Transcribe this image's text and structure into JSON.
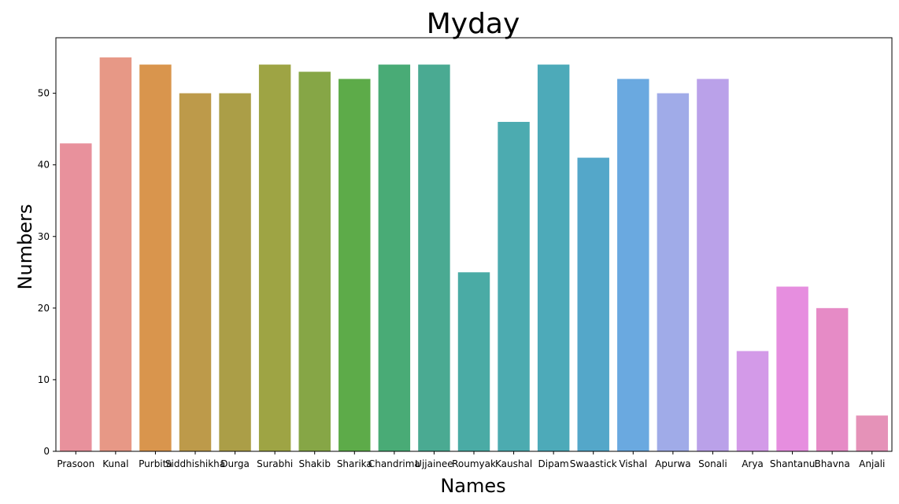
{
  "chart_data": {
    "type": "bar",
    "title": "Myday",
    "xlabel": "Names",
    "ylabel": "Numbers",
    "ylim": [
      0,
      57.75
    ],
    "yticks": [
      0,
      10,
      20,
      30,
      40,
      50
    ],
    "grid": false,
    "categories": [
      "Prasoon",
      "Kunal",
      "Purbita",
      "Siddhishikha",
      "Durga",
      "Surabhi",
      "Shakib",
      "Sharika",
      "Chandrima",
      "Ujjainee",
      "Roumyak",
      "Kaushal",
      "Dipam",
      "Swaastick",
      "Vishal",
      "Apurwa",
      "Sonali",
      "Arya",
      "Shantanu",
      "Bhavna",
      "Anjali"
    ],
    "values": [
      43,
      55,
      54,
      50,
      50,
      54,
      53,
      52,
      54,
      54,
      25,
      46,
      54,
      41,
      52,
      50,
      52,
      14,
      23,
      20,
      5
    ],
    "colors": [
      "#e8919c",
      "#e79886",
      "#d9954d",
      "#bd9a4a",
      "#ab9e47",
      "#9ea444",
      "#86a646",
      "#5dab49",
      "#49ab76",
      "#4aaa92",
      "#4aaba5",
      "#4cabb0",
      "#4daab9",
      "#54a7c9",
      "#6aa9e0",
      "#a0abe8",
      "#baa1e9",
      "#d39ae8",
      "#e68edf",
      "#e68bc6",
      "#e592b8"
    ]
  }
}
